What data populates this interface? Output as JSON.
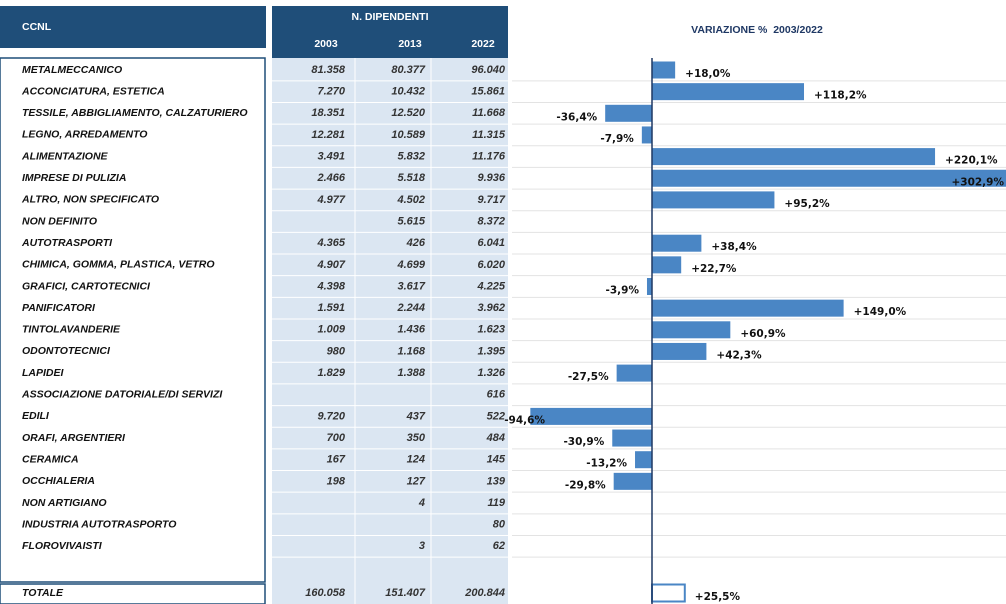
{
  "header": {
    "ccnl": "CCNL",
    "employees": "N. DIPENDENTI",
    "years": [
      "2003",
      "2013",
      "2022"
    ],
    "change": "VARIAZIONE %  2003/2022"
  },
  "rows": [
    {
      "name": "METALMECCANICO",
      "counts": [
        "81.358",
        "80.377",
        "96.040"
      ],
      "change": 18.0,
      "change_label": "+18,0%"
    },
    {
      "name": "ACCONCIATURA, ESTETICA",
      "counts": [
        "7.270",
        "10.432",
        "15.861"
      ],
      "change": 118.2,
      "change_label": "+118,2%"
    },
    {
      "name": "TESSILE, ABBIGLIAMENTO, CALZATURIERO",
      "counts": [
        "18.351",
        "12.520",
        "11.668"
      ],
      "change": -36.4,
      "change_label": "-36,4%"
    },
    {
      "name": "LEGNO, ARREDAMENTO",
      "counts": [
        "12.281",
        "10.589",
        "11.315"
      ],
      "change": -7.9,
      "change_label": "-7,9%"
    },
    {
      "name": "ALIMENTAZIONE",
      "counts": [
        "3.491",
        "5.832",
        "11.176"
      ],
      "change": 220.1,
      "change_label": "+220,1%"
    },
    {
      "name": "IMPRESE DI PULIZIA",
      "counts": [
        "2.466",
        "5.518",
        "9.936"
      ],
      "change": 302.9,
      "change_label": "+302,9%"
    },
    {
      "name": "ALTRO, NON SPECIFICATO",
      "counts": [
        "4.977",
        "4.502",
        "9.717"
      ],
      "change": 95.2,
      "change_label": "+95,2%"
    },
    {
      "name": "NON DEFINITO",
      "counts": [
        null,
        "5.615",
        "8.372"
      ],
      "change": null,
      "change_label": null
    },
    {
      "name": "AUTOTRASPORTI",
      "counts": [
        "4.365",
        "426",
        "6.041"
      ],
      "change": 38.4,
      "change_label": "+38,4%"
    },
    {
      "name": "CHIMICA, GOMMA, PLASTICA, VETRO",
      "counts": [
        "4.907",
        "4.699",
        "6.020"
      ],
      "change": 22.7,
      "change_label": "+22,7%"
    },
    {
      "name": "GRAFICI, CARTOTECNICI",
      "counts": [
        "4.398",
        "3.617",
        "4.225"
      ],
      "change": -3.9,
      "change_label": "-3,9%"
    },
    {
      "name": "PANIFICATORI",
      "counts": [
        "1.591",
        "2.244",
        "3.962"
      ],
      "change": 149.0,
      "change_label": "+149,0%"
    },
    {
      "name": "TINTOLAVANDERIE",
      "counts": [
        "1.009",
        "1.436",
        "1.623"
      ],
      "change": 60.9,
      "change_label": "+60,9%"
    },
    {
      "name": "ODONTOTECNICI",
      "counts": [
        "980",
        "1.168",
        "1.395"
      ],
      "change": 42.3,
      "change_label": "+42,3%"
    },
    {
      "name": "LAPIDEI",
      "counts": [
        "1.829",
        "1.388",
        "1.326"
      ],
      "change": -27.5,
      "change_label": "-27,5%"
    },
    {
      "name": "ASSOCIAZIONE DATORIALE/DI SERVIZI",
      "counts": [
        null,
        null,
        "616"
      ],
      "change": null,
      "change_label": null
    },
    {
      "name": "EDILI",
      "counts": [
        "9.720",
        "437",
        "522"
      ],
      "change": -94.6,
      "change_label": "-94,6%"
    },
    {
      "name": "ORAFI, ARGENTIERI",
      "counts": [
        "700",
        "350",
        "484"
      ],
      "change": -30.9,
      "change_label": "-30,9%"
    },
    {
      "name": "CERAMICA",
      "counts": [
        "167",
        "124",
        "145"
      ],
      "change": -13.2,
      "change_label": "-13,2%"
    },
    {
      "name": "OCCHIALERIA",
      "counts": [
        "198",
        "127",
        "139"
      ],
      "change": -29.8,
      "change_label": "-29,8%"
    },
    {
      "name": "NON ARTIGIANO",
      "counts": [
        null,
        "4",
        "119"
      ],
      "change": null,
      "change_label": null
    },
    {
      "name": "INDUSTRIA AUTOTRASPORTO",
      "counts": [
        null,
        null,
        "80"
      ],
      "change": null,
      "change_label": null
    },
    {
      "name": "FLOROVIVAISTI",
      "counts": [
        null,
        "3",
        "62"
      ],
      "change": null,
      "change_label": null
    }
  ],
  "total": {
    "name": "TOTALE",
    "counts": [
      "160.058",
      "151.407",
      "200.844"
    ],
    "change": 25.5,
    "change_label": "+25,5%"
  },
  "bar_color": "#4a86c5"
}
